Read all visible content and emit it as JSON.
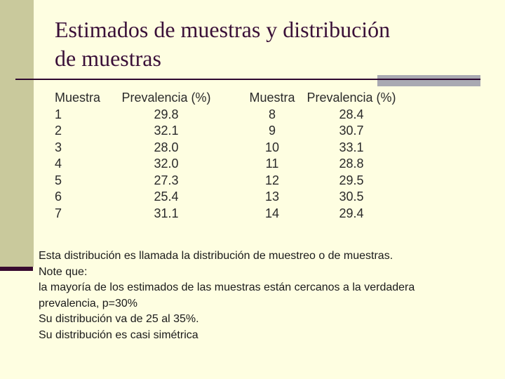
{
  "title": {
    "full": "Estimados de muestras y distribución de muestras",
    "line1": "Estimados de muestras y distribución",
    "line2": "de muestras"
  },
  "table": {
    "headers": [
      "Muestra",
      "Prevalencia (%)",
      "Muestra",
      "Prevalencia (%)"
    ],
    "rows": [
      [
        "1",
        "29.8",
        "8",
        "28.4"
      ],
      [
        "2",
        "32.1",
        "9",
        "30.7"
      ],
      [
        "3",
        "28.0",
        "10",
        "33.1"
      ],
      [
        "4",
        "32.0",
        "11",
        "28.8"
      ],
      [
        "5",
        "27.3",
        "12",
        "29.5"
      ],
      [
        "6",
        "25.4",
        "13",
        "30.5"
      ],
      [
        "7",
        "31.1",
        "14",
        "29.4"
      ]
    ]
  },
  "notes": {
    "lines": [
      "Esta distribución es llamada la distribución de muestreo o de muestras.",
      "Note que:",
      "la mayoría de los estimados de las muestras están cercanos a la verdadera",
      "prevalencia, p=30%",
      "Su distribución va de 25 al 35%.",
      "Su distribución es casi simétrica"
    ]
  },
  "colors": {
    "background": "#FEFEE1",
    "sidebar_olive": "#C9C99C",
    "accent_dark_purple": "#380B30",
    "accent_gray": "#A9A9B2",
    "title_text": "#3A1038",
    "body_text": "#1A1A1A"
  }
}
